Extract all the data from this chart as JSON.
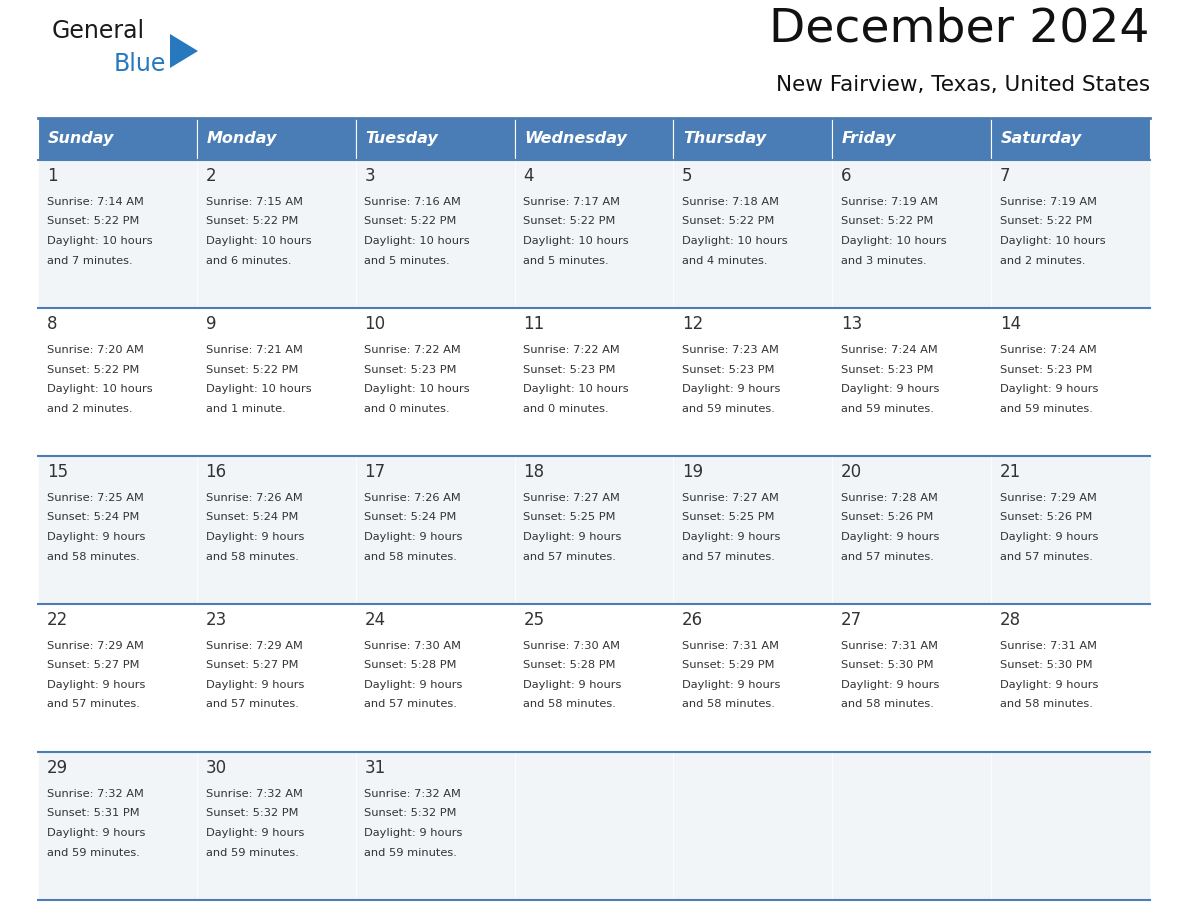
{
  "title": "December 2024",
  "subtitle": "New Fairview, Texas, United States",
  "days_of_week": [
    "Sunday",
    "Monday",
    "Tuesday",
    "Wednesday",
    "Thursday",
    "Friday",
    "Saturday"
  ],
  "header_bg": "#4a7db5",
  "header_text": "#ffffff",
  "row_bg": "#f2f5f8",
  "row_bg_alt": "#ffffff",
  "border_color": "#4a7db5",
  "text_color": "#333333",
  "calendar_data": [
    [
      {
        "day": 1,
        "sunrise": "7:14 AM",
        "sunset": "5:22 PM",
        "daylight_line1": "Daylight: 10 hours",
        "daylight_line2": "and 7 minutes."
      },
      {
        "day": 2,
        "sunrise": "7:15 AM",
        "sunset": "5:22 PM",
        "daylight_line1": "Daylight: 10 hours",
        "daylight_line2": "and 6 minutes."
      },
      {
        "day": 3,
        "sunrise": "7:16 AM",
        "sunset": "5:22 PM",
        "daylight_line1": "Daylight: 10 hours",
        "daylight_line2": "and 5 minutes."
      },
      {
        "day": 4,
        "sunrise": "7:17 AM",
        "sunset": "5:22 PM",
        "daylight_line1": "Daylight: 10 hours",
        "daylight_line2": "and 5 minutes."
      },
      {
        "day": 5,
        "sunrise": "7:18 AM",
        "sunset": "5:22 PM",
        "daylight_line1": "Daylight: 10 hours",
        "daylight_line2": "and 4 minutes."
      },
      {
        "day": 6,
        "sunrise": "7:19 AM",
        "sunset": "5:22 PM",
        "daylight_line1": "Daylight: 10 hours",
        "daylight_line2": "and 3 minutes."
      },
      {
        "day": 7,
        "sunrise": "7:19 AM",
        "sunset": "5:22 PM",
        "daylight_line1": "Daylight: 10 hours",
        "daylight_line2": "and 2 minutes."
      }
    ],
    [
      {
        "day": 8,
        "sunrise": "7:20 AM",
        "sunset": "5:22 PM",
        "daylight_line1": "Daylight: 10 hours",
        "daylight_line2": "and 2 minutes."
      },
      {
        "day": 9,
        "sunrise": "7:21 AM",
        "sunset": "5:22 PM",
        "daylight_line1": "Daylight: 10 hours",
        "daylight_line2": "and 1 minute."
      },
      {
        "day": 10,
        "sunrise": "7:22 AM",
        "sunset": "5:23 PM",
        "daylight_line1": "Daylight: 10 hours",
        "daylight_line2": "and 0 minutes."
      },
      {
        "day": 11,
        "sunrise": "7:22 AM",
        "sunset": "5:23 PM",
        "daylight_line1": "Daylight: 10 hours",
        "daylight_line2": "and 0 minutes."
      },
      {
        "day": 12,
        "sunrise": "7:23 AM",
        "sunset": "5:23 PM",
        "daylight_line1": "Daylight: 9 hours",
        "daylight_line2": "and 59 minutes."
      },
      {
        "day": 13,
        "sunrise": "7:24 AM",
        "sunset": "5:23 PM",
        "daylight_line1": "Daylight: 9 hours",
        "daylight_line2": "and 59 minutes."
      },
      {
        "day": 14,
        "sunrise": "7:24 AM",
        "sunset": "5:23 PM",
        "daylight_line1": "Daylight: 9 hours",
        "daylight_line2": "and 59 minutes."
      }
    ],
    [
      {
        "day": 15,
        "sunrise": "7:25 AM",
        "sunset": "5:24 PM",
        "daylight_line1": "Daylight: 9 hours",
        "daylight_line2": "and 58 minutes."
      },
      {
        "day": 16,
        "sunrise": "7:26 AM",
        "sunset": "5:24 PM",
        "daylight_line1": "Daylight: 9 hours",
        "daylight_line2": "and 58 minutes."
      },
      {
        "day": 17,
        "sunrise": "7:26 AM",
        "sunset": "5:24 PM",
        "daylight_line1": "Daylight: 9 hours",
        "daylight_line2": "and 58 minutes."
      },
      {
        "day": 18,
        "sunrise": "7:27 AM",
        "sunset": "5:25 PM",
        "daylight_line1": "Daylight: 9 hours",
        "daylight_line2": "and 57 minutes."
      },
      {
        "day": 19,
        "sunrise": "7:27 AM",
        "sunset": "5:25 PM",
        "daylight_line1": "Daylight: 9 hours",
        "daylight_line2": "and 57 minutes."
      },
      {
        "day": 20,
        "sunrise": "7:28 AM",
        "sunset": "5:26 PM",
        "daylight_line1": "Daylight: 9 hours",
        "daylight_line2": "and 57 minutes."
      },
      {
        "day": 21,
        "sunrise": "7:29 AM",
        "sunset": "5:26 PM",
        "daylight_line1": "Daylight: 9 hours",
        "daylight_line2": "and 57 minutes."
      }
    ],
    [
      {
        "day": 22,
        "sunrise": "7:29 AM",
        "sunset": "5:27 PM",
        "daylight_line1": "Daylight: 9 hours",
        "daylight_line2": "and 57 minutes."
      },
      {
        "day": 23,
        "sunrise": "7:29 AM",
        "sunset": "5:27 PM",
        "daylight_line1": "Daylight: 9 hours",
        "daylight_line2": "and 57 minutes."
      },
      {
        "day": 24,
        "sunrise": "7:30 AM",
        "sunset": "5:28 PM",
        "daylight_line1": "Daylight: 9 hours",
        "daylight_line2": "and 57 minutes."
      },
      {
        "day": 25,
        "sunrise": "7:30 AM",
        "sunset": "5:28 PM",
        "daylight_line1": "Daylight: 9 hours",
        "daylight_line2": "and 58 minutes."
      },
      {
        "day": 26,
        "sunrise": "7:31 AM",
        "sunset": "5:29 PM",
        "daylight_line1": "Daylight: 9 hours",
        "daylight_line2": "and 58 minutes."
      },
      {
        "day": 27,
        "sunrise": "7:31 AM",
        "sunset": "5:30 PM",
        "daylight_line1": "Daylight: 9 hours",
        "daylight_line2": "and 58 minutes."
      },
      {
        "day": 28,
        "sunrise": "7:31 AM",
        "sunset": "5:30 PM",
        "daylight_line1": "Daylight: 9 hours",
        "daylight_line2": "and 58 minutes."
      }
    ],
    [
      {
        "day": 29,
        "sunrise": "7:32 AM",
        "sunset": "5:31 PM",
        "daylight_line1": "Daylight: 9 hours",
        "daylight_line2": "and 59 minutes."
      },
      {
        "day": 30,
        "sunrise": "7:32 AM",
        "sunset": "5:32 PM",
        "daylight_line1": "Daylight: 9 hours",
        "daylight_line2": "and 59 minutes."
      },
      {
        "day": 31,
        "sunrise": "7:32 AM",
        "sunset": "5:32 PM",
        "daylight_line1": "Daylight: 9 hours",
        "daylight_line2": "and 59 minutes."
      },
      null,
      null,
      null,
      null
    ]
  ],
  "logo_general_color": "#1a1a1a",
  "logo_blue_color": "#2878c0",
  "fig_width": 11.88,
  "fig_height": 9.18,
  "dpi": 100
}
